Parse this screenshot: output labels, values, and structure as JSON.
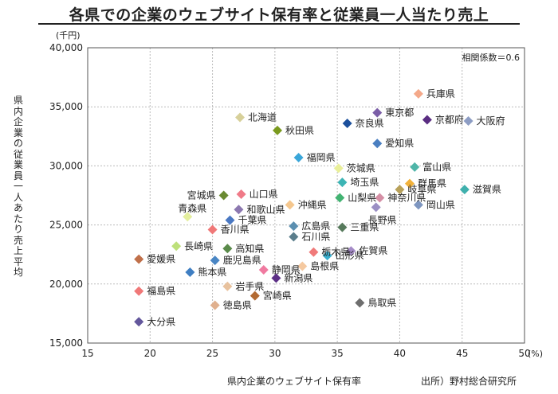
{
  "chart_data": {
    "type": "scatter",
    "title": "各県での企業のウェブサイト保有率と従業員一人当たり売上",
    "xlabel": "県内企業のウェブサイト保有率",
    "ylabel": "県内企業の従業員一人あたり売上平均",
    "x_unit": "(%)",
    "y_unit": "(千円)",
    "annotation": "相関係数＝0.6",
    "source": "出所）野村総合研究所",
    "xlim": [
      15,
      50
    ],
    "ylim": [
      15000,
      40000
    ],
    "x_ticks": [
      15,
      20,
      25,
      30,
      35,
      40,
      45,
      50
    ],
    "y_ticks": [
      15000,
      20000,
      25000,
      30000,
      35000,
      40000
    ],
    "x_tick_labels": [
      "15",
      "20",
      "25",
      "30",
      "35",
      "40",
      "45",
      "50"
    ],
    "y_tick_labels": [
      "15,000",
      "20,000",
      "25,000",
      "30,000",
      "35,000",
      "40,000"
    ],
    "grid": true,
    "points": [
      {
        "label": "兵庫県",
        "x": 41.5,
        "y": 36100,
        "color": "#f4a98a"
      },
      {
        "label": "東京都",
        "x": 38.2,
        "y": 34500,
        "color": "#7b5ea7"
      },
      {
        "label": "京都府",
        "x": 42.2,
        "y": 33900,
        "color": "#5a2d82"
      },
      {
        "label": "大阪府",
        "x": 45.5,
        "y": 33800,
        "color": "#8d9dc4"
      },
      {
        "label": "北海道",
        "x": 27.2,
        "y": 34100,
        "color": "#d7d09a"
      },
      {
        "label": "奈良県",
        "x": 35.8,
        "y": 33600,
        "color": "#1b4f9c"
      },
      {
        "label": "秋田県",
        "x": 30.2,
        "y": 33000,
        "color": "#7a9a1e"
      },
      {
        "label": "愛知県",
        "x": 38.2,
        "y": 31900,
        "color": "#4a7fc1"
      },
      {
        "label": "福岡県",
        "x": 31.9,
        "y": 30700,
        "color": "#3aa6d9"
      },
      {
        "label": "茨城県",
        "x": 35.1,
        "y": 29800,
        "color": "#e9ef9a"
      },
      {
        "label": "富山県",
        "x": 41.2,
        "y": 29900,
        "color": "#4fb5a8"
      },
      {
        "label": "埼玉県",
        "x": 35.4,
        "y": 28600,
        "color": "#3db5b5"
      },
      {
        "label": "群馬県",
        "x": 40.8,
        "y": 28500,
        "color": "#f2b23b"
      },
      {
        "label": "滋賀県",
        "x": 45.2,
        "y": 28000,
        "color": "#3fb0ad"
      },
      {
        "label": "宮城県",
        "x": 25.9,
        "y": 27500,
        "color": "#6a8a32"
      },
      {
        "label": "山口県",
        "x": 27.3,
        "y": 27600,
        "color": "#f07a88"
      },
      {
        "label": "岐阜県",
        "x": 40.0,
        "y": 28000,
        "color": "#b8a15a"
      },
      {
        "label": "山梨県",
        "x": 35.2,
        "y": 27300,
        "color": "#42b372"
      },
      {
        "label": "神奈川県",
        "x": 38.4,
        "y": 27300,
        "color": "#d58fa5"
      },
      {
        "label": "沖縄県",
        "x": 31.2,
        "y": 26700,
        "color": "#f5c78e"
      },
      {
        "label": "岡山県",
        "x": 41.5,
        "y": 26700,
        "color": "#7e96c0"
      },
      {
        "label": "和歌山県",
        "x": 27.1,
        "y": 26300,
        "color": "#8c78b0"
      },
      {
        "label": "長野県",
        "x": 38.1,
        "y": 26500,
        "color": "#9b8fc4"
      },
      {
        "label": "青森県",
        "x": 23.0,
        "y": 25700,
        "color": "#e4ef9e"
      },
      {
        "label": "千葉県",
        "x": 26.4,
        "y": 25400,
        "color": "#4a78c2"
      },
      {
        "label": "広島県",
        "x": 31.5,
        "y": 24900,
        "color": "#5b8fb0"
      },
      {
        "label": "三重県",
        "x": 35.4,
        "y": 24800,
        "color": "#577a5c"
      },
      {
        "label": "香川県",
        "x": 25.0,
        "y": 24600,
        "color": "#f07878"
      },
      {
        "label": "石川県",
        "x": 31.5,
        "y": 24000,
        "color": "#5b7e8c"
      },
      {
        "label": "長崎県",
        "x": 22.1,
        "y": 23200,
        "color": "#bde07a"
      },
      {
        "label": "高知県",
        "x": 26.2,
        "y": 23000,
        "color": "#5a8a4a"
      },
      {
        "label": "栃木県",
        "x": 33.1,
        "y": 22700,
        "color": "#f07a7a"
      },
      {
        "label": "佐賀県",
        "x": 36.1,
        "y": 22800,
        "color": "#a58bc7"
      },
      {
        "label": "愛媛県",
        "x": 19.1,
        "y": 22100,
        "color": "#c0704a"
      },
      {
        "label": "鹿児島県",
        "x": 25.2,
        "y": 22000,
        "color": "#4a86c4"
      },
      {
        "label": "山形県",
        "x": 34.2,
        "y": 22400,
        "color": "#3ab0d0"
      },
      {
        "label": "静岡県",
        "x": 29.1,
        "y": 21200,
        "color": "#f07aa0"
      },
      {
        "label": "島根県",
        "x": 32.2,
        "y": 21500,
        "color": "#f5c9a0"
      },
      {
        "label": "熊本県",
        "x": 23.2,
        "y": 21000,
        "color": "#3f7ec2"
      },
      {
        "label": "新潟県",
        "x": 30.1,
        "y": 20500,
        "color": "#5c2f86"
      },
      {
        "label": "岩手県",
        "x": 26.2,
        "y": 19800,
        "color": "#e8c29e"
      },
      {
        "label": "福島県",
        "x": 19.1,
        "y": 19400,
        "color": "#f07878"
      },
      {
        "label": "宮崎県",
        "x": 28.4,
        "y": 19000,
        "color": "#b26a33"
      },
      {
        "label": "徳島県",
        "x": 25.2,
        "y": 18200,
        "color": "#e0b08e"
      },
      {
        "label": "鳥取県",
        "x": 36.8,
        "y": 18400,
        "color": "#6e6e6e"
      },
      {
        "label": "大分県",
        "x": 19.1,
        "y": 16800,
        "color": "#63579c"
      }
    ]
  }
}
